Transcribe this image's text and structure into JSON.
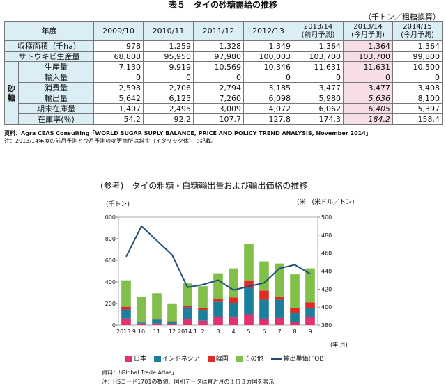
{
  "title": "表５　タイの砂糖需給の推移",
  "unit_note": "（千トン／粗糖換算）",
  "table": {
    "corner": "年度",
    "cols": [
      [
        "2009/10"
      ],
      [
        "2010/11"
      ],
      [
        "2011/12"
      ],
      [
        "2012/13"
      ],
      [
        "2013/14",
        "(前月予測)"
      ],
      [
        "2013/14",
        "(今月予測)"
      ],
      [
        "2014/15",
        "(今月予測)"
      ]
    ],
    "group_label": [
      "砂",
      "糖"
    ],
    "rows": [
      {
        "label": "収穫面積（千ha）",
        "vals": [
          "978",
          "1,259",
          "1,328",
          "1,349",
          "1,364",
          "1,364",
          "1,364"
        ]
      },
      {
        "label": "サトウキビ生産量",
        "vals": [
          "68,808",
          "95,950",
          "97,980",
          "100,003",
          "103,700",
          "103,700",
          "99,800"
        ]
      },
      {
        "label": "生産量",
        "vals": [
          "7,130",
          "9,919",
          "10,569",
          "10,346",
          "11,631",
          "11,631",
          "10,500"
        ]
      },
      {
        "label": "輸入量",
        "vals": [
          "0",
          "0",
          "0",
          "0",
          "0",
          "0",
          "0"
        ]
      },
      {
        "label": "消費量",
        "vals": [
          "2,598",
          "2,706",
          "2,794",
          "3,185",
          "3,477",
          "3,477",
          "3,408"
        ]
      },
      {
        "label": "輸出量",
        "vals": [
          "5,642",
          "6,125",
          "7,260",
          "6,098",
          "5,980",
          "5,636",
          "8,100"
        ]
      },
      {
        "label": "期末在庫量",
        "vals": [
          "1,407",
          "2,495",
          "3,009",
          "4,072",
          "6,062",
          "6,405",
          "5,397"
        ]
      },
      {
        "label": "在庫率(％)",
        "vals": [
          "54.2",
          "92.2",
          "107.7",
          "127.8",
          "174.3",
          "184.2",
          "158.4"
        ]
      }
    ]
  },
  "notes": {
    "source": "資料：Agra CEAS Consulting「WORLD SUGAR SUPLY BALANCE, PRICE AND POLICY TREND ANALYSIS, November 2014」",
    "note": "注：2013/14年度の前月予測と今月予測の変更箇所は斜字（イタリック体）で記載。"
  },
  "chart_title": "(参考)　タイの粗糖・白糖輸出量および輸出価格の推移",
  "chart_data": {
    "type": "bar",
    "title": "(参考)　タイの粗糖・白糖輸出量および輸出価格の推移",
    "ylabel_left": "(千トン)",
    "ylabel_right": "(米　(米ドル／トン)",
    "xunit": "(年.月)",
    "categories": [
      "2013.9",
      "10",
      "11",
      "12",
      "2014.1",
      "2",
      "3",
      "4",
      "5",
      "6",
      "7",
      "8",
      "9"
    ],
    "ylim_left": [
      0,
      1000
    ],
    "yticks_left": [
      "0",
      "200",
      "400",
      "600",
      "800",
      "1,000"
    ],
    "ylim_right": [
      380,
      500
    ],
    "yticks_right": [
      "380",
      "400",
      "420",
      "440",
      "460",
      "480",
      "500"
    ],
    "stacked": true,
    "series": [
      {
        "name": "日本",
        "color": "#e3306e",
        "values": [
          60,
          15,
          15,
          10,
          55,
          40,
          75,
          70,
          100,
          55,
          65,
          30,
          75
        ]
      },
      {
        "name": "インドネシア",
        "color": "#1b7e9a",
        "values": [
          85,
          10,
          35,
          20,
          110,
          95,
          140,
          130,
          245,
          180,
          170,
          80,
          85
        ]
      },
      {
        "name": "韓国",
        "color": "#e02a24",
        "values": [
          25,
          0,
          5,
          5,
          15,
          20,
          25,
          55,
          70,
          85,
          30,
          45,
          50
        ]
      },
      {
        "name": "その他",
        "color": "#7fbf4a",
        "values": [
          245,
          235,
          240,
          160,
          205,
          205,
          240,
          270,
          340,
          270,
          305,
          315,
          315
        ]
      }
    ],
    "line": {
      "name": "輸出単価(FOB)",
      "color": "#1f4e79",
      "values": [
        456,
        490,
        474,
        458,
        422,
        425,
        430,
        419,
        423,
        427,
        443,
        447,
        437
      ]
    }
  },
  "legend": [
    "日本",
    "インドネシア",
    "韓国",
    "その他",
    "輸出単価(FOB)"
  ],
  "chart_source": "資料：「Global Trade Atlas」",
  "chart_note": "注：HSコード1701の数値、国別データは直近月の上位３カ国を表示"
}
